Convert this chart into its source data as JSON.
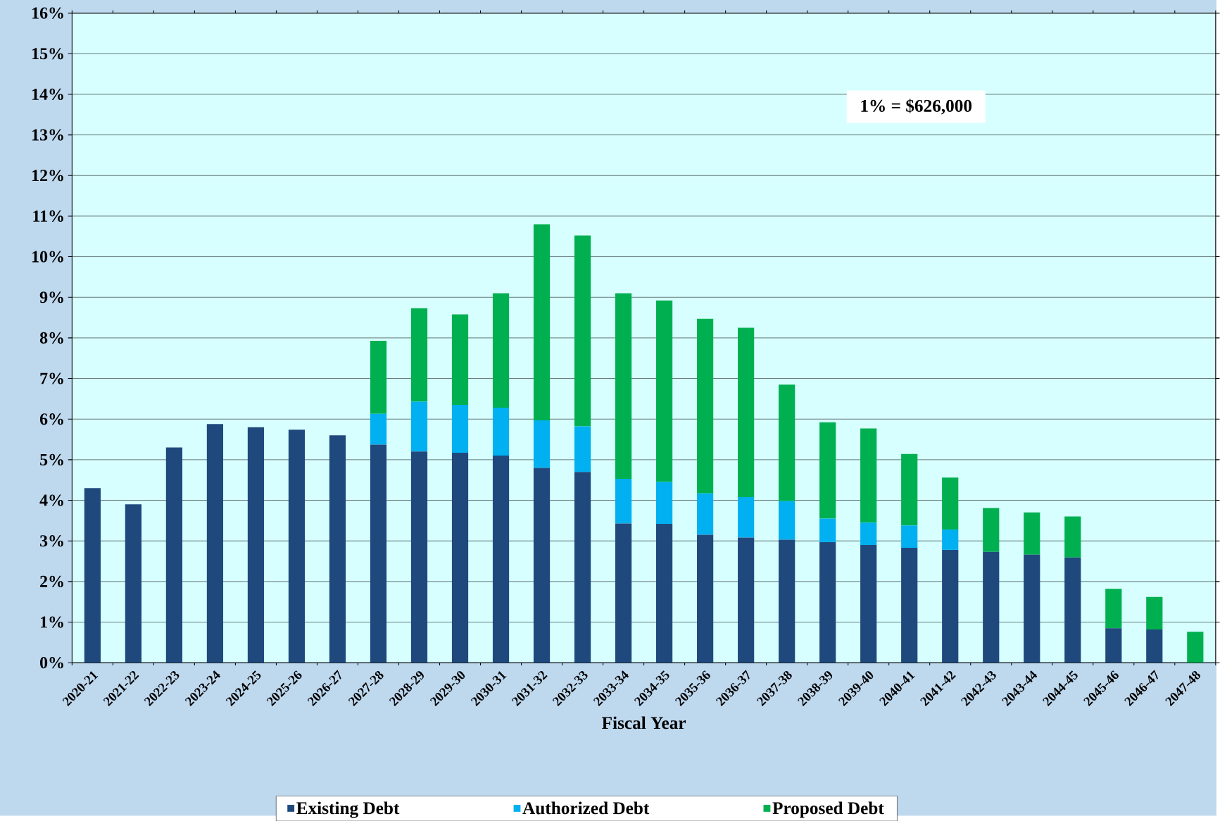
{
  "chart_data": {
    "type": "bar",
    "stacked": true,
    "xlabel": "Fiscal Year",
    "categories": [
      "2020-21",
      "2021-22",
      "2022-23",
      "2023-24",
      "2024-25",
      "2025-26",
      "2026-27",
      "2027-28",
      "2028-29",
      "2029-30",
      "2030-31",
      "2031-32",
      "2032-33",
      "2033-34",
      "2034-35",
      "2035-36",
      "2036-37",
      "2037-38",
      "2038-39",
      "2039-40",
      "2040-41",
      "2041-42",
      "2042-43",
      "2043-44",
      "2044-45",
      "2045-46",
      "2046-47",
      "2047-48"
    ],
    "series": [
      {
        "name": "Existing Debt",
        "color": "#1f497d",
        "values": [
          4.3,
          3.9,
          5.3,
          5.88,
          5.8,
          5.74,
          5.6,
          5.37,
          5.2,
          5.17,
          5.1,
          4.8,
          4.7,
          3.43,
          3.42,
          3.15,
          3.08,
          3.03,
          2.97,
          2.9,
          2.83,
          2.78,
          2.73,
          2.66,
          2.59,
          0.85,
          0.82,
          0
        ]
      },
      {
        "name": "Authorized Debt",
        "color": "#00b0f0",
        "values": [
          0,
          0,
          0,
          0,
          0,
          0,
          0,
          0.76,
          1.23,
          1.18,
          1.18,
          1.17,
          1.12,
          1.1,
          1.03,
          1.02,
          1.0,
          0.95,
          0.58,
          0.55,
          0.55,
          0.5,
          0,
          0,
          0,
          0,
          0,
          0
        ]
      },
      {
        "name": "Proposed Debt",
        "color": "#00b050",
        "values": [
          0,
          0,
          0,
          0,
          0,
          0,
          0,
          1.8,
          2.3,
          2.23,
          2.82,
          4.83,
          4.7,
          4.57,
          4.47,
          4.3,
          4.17,
          2.87,
          2.37,
          2.32,
          1.76,
          1.28,
          1.08,
          1.04,
          1.01,
          0.97,
          0.8,
          0.76
        ]
      }
    ],
    "ylim": [
      0,
      16
    ],
    "yticks": [
      {
        "value": 0,
        "label": "0%"
      },
      {
        "value": 1,
        "label": "1%"
      },
      {
        "value": 2,
        "label": "2%"
      },
      {
        "value": 3,
        "label": "3%"
      },
      {
        "value": 4,
        "label": "4%"
      },
      {
        "value": 5,
        "label": "5%"
      },
      {
        "value": 6,
        "label": "6%"
      },
      {
        "value": 7,
        "label": "7%"
      },
      {
        "value": 8,
        "label": "8%"
      },
      {
        "value": 9,
        "label": "9%"
      },
      {
        "value": 10,
        "label": "10%"
      },
      {
        "value": 11,
        "label": "11%"
      },
      {
        "value": 12,
        "label": "12%"
      },
      {
        "value": 13,
        "label": "13%"
      },
      {
        "value": 14,
        "label": "14%"
      },
      {
        "value": 15,
        "label": "15%"
      },
      {
        "value": 16,
        "label": "16%"
      }
    ],
    "grid": "y",
    "legend": "bottom",
    "annotations": [
      "1% = $626,000"
    ]
  }
}
